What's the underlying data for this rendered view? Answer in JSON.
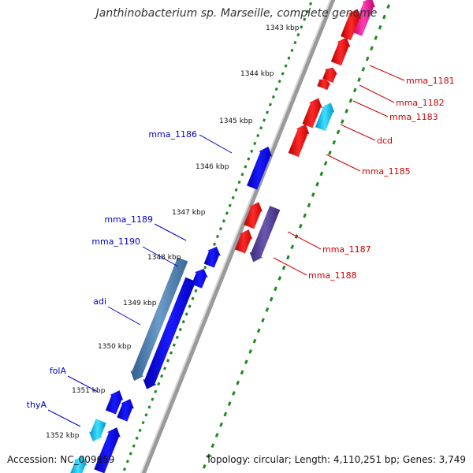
{
  "title": "Janthinobacterium sp. Marseille, complete genome",
  "footer": {
    "accession": "Accession: NC_009659",
    "summary": "Topology: circular; Length: 4,110,251 bp; Genes: 3,749"
  },
  "colors": {
    "forward_label": "#cc0000",
    "reverse_label": "#0000cc",
    "kbp_dots": "#1a8a1a",
    "backbone": "#808080"
  },
  "ticks": [
    {
      "label": "1343 kbp"
    },
    {
      "label": "1344 kbp"
    },
    {
      "label": "1345 kbp"
    },
    {
      "label": "1346 kbp"
    },
    {
      "label": "1347 kbp"
    },
    {
      "label": "1348 kbp"
    },
    {
      "label": "1349 kbp"
    },
    {
      "label": "1350 kbp"
    },
    {
      "label": "1351 kbp"
    },
    {
      "label": "1352 kbp"
    }
  ],
  "gene_labels": {
    "forward": [
      "mma_1181",
      "mma_1182",
      "mma_1183",
      "dcd",
      "mma_1185",
      "mma_1187",
      "mma_1188"
    ],
    "reverse": [
      "mma_1186",
      "mma_1189",
      "mma_1190",
      "adi",
      "folA",
      "thyA"
    ]
  }
}
